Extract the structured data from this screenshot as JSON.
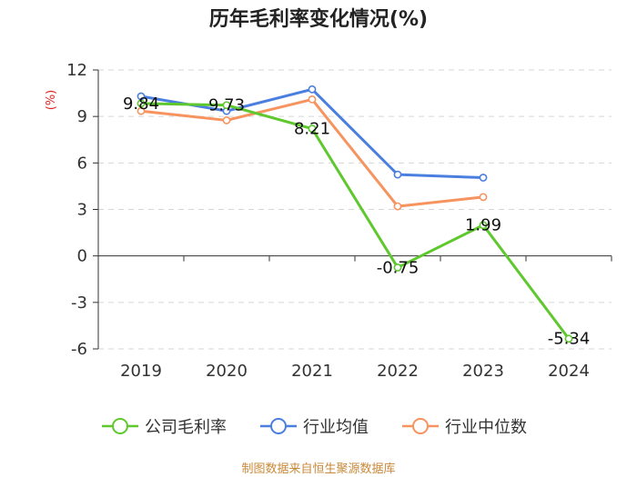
{
  "chart_data": {
    "type": "line",
    "title": "历年毛利率变化情况(%)",
    "ylabel": "(%)",
    "xlabel": "",
    "categories": [
      "2019",
      "2020",
      "2021",
      "2022",
      "2023",
      "2024"
    ],
    "ylim": [
      -6,
      12
    ],
    "yticks": [
      12,
      9,
      6,
      3,
      0,
      -3,
      -6
    ],
    "grid": true,
    "legend_position": "bottom",
    "series": [
      {
        "name": "公司毛利率",
        "color": "#5ec82e",
        "values": [
          9.84,
          9.73,
          8.21,
          -0.75,
          1.99,
          -5.34
        ],
        "labels": [
          "9.84",
          "9.73",
          "8.21",
          "-0.75",
          "1.99",
          "-5.34"
        ]
      },
      {
        "name": "行业均值",
        "color": "#4a7fe0",
        "values": [
          10.3,
          9.35,
          10.75,
          5.25,
          5.05,
          null
        ]
      },
      {
        "name": "行业中位数",
        "color": "#f6935e",
        "values": [
          9.35,
          8.75,
          10.1,
          3.2,
          3.8,
          null
        ]
      }
    ],
    "source": "制图数据来自恒生聚源数据库"
  }
}
